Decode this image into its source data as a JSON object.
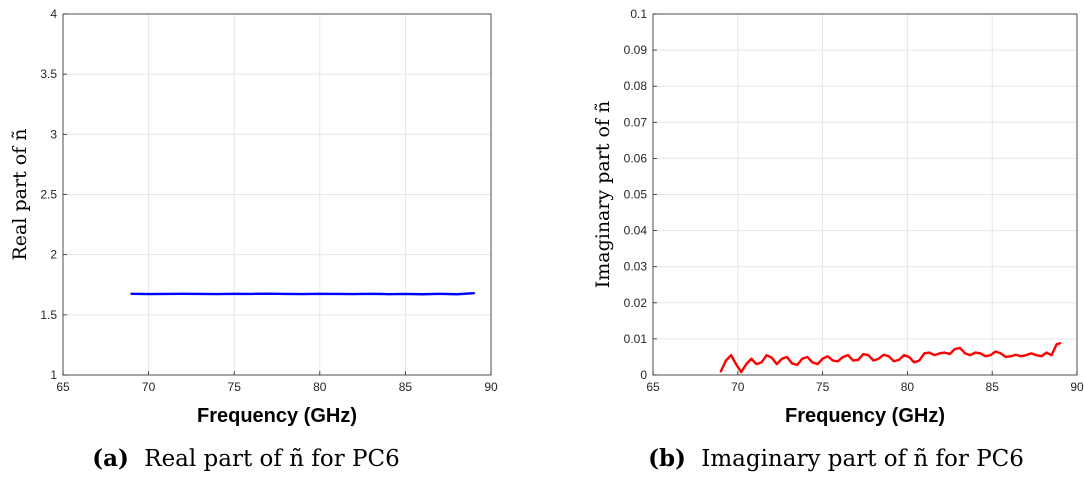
{
  "chart_data": [
    {
      "type": "line",
      "title": "",
      "xlabel": "Frequency (GHz)",
      "ylabel": "Real part of ñ",
      "xlim": [
        65,
        90
      ],
      "ylim": [
        1,
        4
      ],
      "xticks": [
        65,
        70,
        75,
        80,
        85,
        90
      ],
      "yticks": [
        1,
        1.5,
        2,
        2.5,
        3,
        3.5,
        4
      ],
      "xtick_labels": [
        "65",
        "70",
        "75",
        "80",
        "85",
        "90"
      ],
      "ytick_labels": [
        "1",
        "1.5",
        "2",
        "2.5",
        "3",
        "3.5",
        "4"
      ],
      "grid": true,
      "caption_label": "(a)",
      "caption_text": "Real part of ñ for PC6",
      "series": [
        {
          "color": "#0000ff",
          "x": [
            69,
            70,
            71,
            72,
            73,
            74,
            75,
            76,
            77,
            78,
            79,
            80,
            81,
            82,
            83,
            84,
            85,
            86,
            87,
            88,
            89
          ],
          "y": [
            1.675,
            1.673,
            1.674,
            1.675,
            1.674,
            1.673,
            1.675,
            1.674,
            1.676,
            1.674,
            1.673,
            1.675,
            1.674,
            1.673,
            1.675,
            1.672,
            1.674,
            1.671,
            1.675,
            1.671,
            1.68
          ]
        }
      ]
    },
    {
      "type": "line",
      "title": "",
      "xlabel": "Frequency (GHz)",
      "ylabel": "Imaginary part of ñ",
      "xlim": [
        65,
        90
      ],
      "ylim": [
        0,
        0.1
      ],
      "xticks": [
        65,
        70,
        75,
        80,
        85,
        90
      ],
      "yticks": [
        0,
        0.01,
        0.02,
        0.03,
        0.04,
        0.05,
        0.06,
        0.07,
        0.08,
        0.09,
        0.1
      ],
      "xtick_labels": [
        "65",
        "70",
        "75",
        "80",
        "85",
        "90"
      ],
      "ytick_labels": [
        "0",
        "0.01",
        "0.02",
        "0.03",
        "0.04",
        "0.05",
        "0.06",
        "0.07",
        "0.08",
        "0.09",
        "0.1"
      ],
      "grid": true,
      "caption_label": "(b)",
      "caption_text": "Imaginary part of ñ for PC6",
      "series": [
        {
          "color": "#ff0000",
          "x": [
            69.0,
            69.3,
            69.6,
            69.9,
            70.2,
            70.5,
            70.8,
            71.1,
            71.4,
            71.7,
            72.0,
            72.3,
            72.6,
            72.9,
            73.2,
            73.5,
            73.8,
            74.1,
            74.4,
            74.7,
            75.0,
            75.3,
            75.6,
            75.9,
            76.2,
            76.5,
            76.8,
            77.1,
            77.4,
            77.7,
            78.0,
            78.3,
            78.6,
            78.9,
            79.2,
            79.5,
            79.8,
            80.1,
            80.4,
            80.7,
            81.0,
            81.3,
            81.6,
            81.9,
            82.2,
            82.5,
            82.8,
            83.1,
            83.4,
            83.7,
            84.0,
            84.3,
            84.6,
            84.9,
            85.2,
            85.5,
            85.8,
            86.1,
            86.4,
            86.7,
            87.0,
            87.3,
            87.6,
            87.9,
            88.2,
            88.5,
            88.8,
            89.0
          ],
          "y": [
            0.001,
            0.004,
            0.0055,
            0.003,
            0.0008,
            0.003,
            0.0045,
            0.003,
            0.0035,
            0.0055,
            0.0048,
            0.003,
            0.0045,
            0.005,
            0.0032,
            0.0028,
            0.0045,
            0.005,
            0.0035,
            0.003,
            0.0045,
            0.0052,
            0.004,
            0.0038,
            0.005,
            0.0055,
            0.004,
            0.0042,
            0.0058,
            0.0055,
            0.004,
            0.0045,
            0.0056,
            0.0052,
            0.0038,
            0.0042,
            0.0055,
            0.005,
            0.0035,
            0.004,
            0.006,
            0.0062,
            0.0055,
            0.006,
            0.0062,
            0.0058,
            0.0072,
            0.0075,
            0.006,
            0.0055,
            0.0062,
            0.006,
            0.0052,
            0.0055,
            0.0065,
            0.006,
            0.005,
            0.0052,
            0.0056,
            0.0052,
            0.0055,
            0.006,
            0.0055,
            0.0052,
            0.0062,
            0.0055,
            0.0085,
            0.0088
          ]
        }
      ]
    }
  ]
}
